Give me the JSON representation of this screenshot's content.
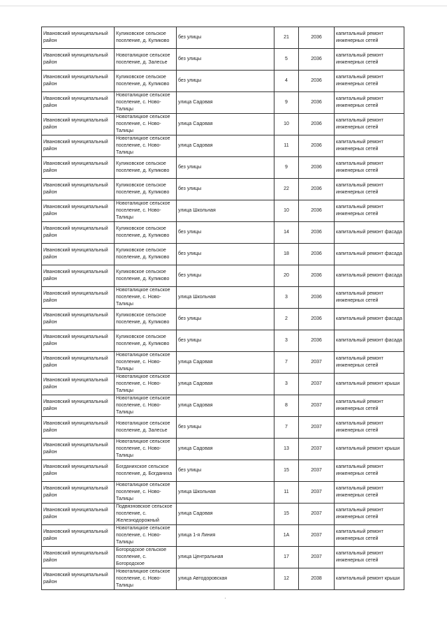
{
  "rows": [
    {
      "district": "Ивановский муниципальный район",
      "settlement": "Куликовское сельское поселение, д. Куликово",
      "street": "без улицы",
      "house": "21",
      "year": "2036",
      "work": "капитальный ремонт инженерных сетей"
    },
    {
      "district": "Ивановский муниципальный район",
      "settlement": "Новоталицкое сельское поселение, д. Залесье",
      "street": "без улицы",
      "house": "5",
      "year": "2036",
      "work": "капитальный ремонт инженерных сетей"
    },
    {
      "district": "Ивановский муниципальный район",
      "settlement": "Куликовское сельское поселение, д. Куликово",
      "street": "без улицы",
      "house": "4",
      "year": "2036",
      "work": "капитальный ремонт инженерных сетей"
    },
    {
      "district": "Ивановский муниципальный район",
      "settlement": "Новоталицкое сельское поселение, с. Ново-Талицы",
      "street": "улица Садовая",
      "house": "9",
      "year": "2036",
      "work": "капитальный ремонт инженерных сетей"
    },
    {
      "district": "Ивановский муниципальный район",
      "settlement": "Новоталицкое сельское поселение, с. Ново-Талицы",
      "street": "улица Садовая",
      "house": "10",
      "year": "2036",
      "work": "капитальный ремонт инженерных сетей"
    },
    {
      "district": "Ивановский муниципальный район",
      "settlement": "Новоталицкое сельское поселение, с. Ново-Талицы",
      "street": "улица Садовая",
      "house": "11",
      "year": "2036",
      "work": "капитальный ремонт инженерных сетей"
    },
    {
      "district": "Ивановский муниципальный район",
      "settlement": "Куликовское сельское поселение, д. Куликово",
      "street": "без улицы",
      "house": "9",
      "year": "2036",
      "work": "капитальный ремонт инженерных сетей"
    },
    {
      "district": "Ивановский муниципальный район",
      "settlement": "Куликовское сельское поселение, д. Куликово",
      "street": "без улицы",
      "house": "22",
      "year": "2036",
      "work": "капитальный ремонт инженерных сетей"
    },
    {
      "district": "Ивановский муниципальный район",
      "settlement": "Новоталицкое сельское поселение, с. Ново-Талицы",
      "street": "улица Школьная",
      "house": "10",
      "year": "2036",
      "work": "капитальный ремонт инженерных сетей"
    },
    {
      "district": "Ивановский муниципальный район",
      "settlement": "Куликовское сельское поселение, д. Куликово",
      "street": "без улицы",
      "house": "14",
      "year": "2036",
      "work": "капитальный ремонт фасада"
    },
    {
      "district": "Ивановский муниципальный район",
      "settlement": "Куликовское сельское поселение, д. Куликово",
      "street": "без улицы",
      "house": "18",
      "year": "2036",
      "work": "капитальный ремонт фасада"
    },
    {
      "district": "Ивановский муниципальный район",
      "settlement": "Куликовское сельское поселение, д. Куликово",
      "street": "без улицы",
      "house": "20",
      "year": "2036",
      "work": "капитальный ремонт фасада"
    },
    {
      "district": "Ивановский муниципальный район",
      "settlement": "Новоталицкое сельское поселение, с. Ново-Талицы",
      "street": "улица Школьная",
      "house": "3",
      "year": "2036",
      "work": "капитальный ремонт инженерных сетей"
    },
    {
      "district": "Ивановский муниципальный район",
      "settlement": "Куликовское сельское поселение, д. Куликово",
      "street": "без улицы",
      "house": "2",
      "year": "2036",
      "work": "капитальный ремонт фасада"
    },
    {
      "district": "Ивановский муниципальный район",
      "settlement": "Куликовское сельское поселение, д. Куликово",
      "street": "без улицы",
      "house": "3",
      "year": "2036",
      "work": "капитальный ремонт фасада"
    },
    {
      "district": "Ивановский муниципальный район",
      "settlement": "Новоталицкое сельское поселение, с. Ново-Талицы",
      "street": "улица Садовая",
      "house": "7",
      "year": "2037",
      "work": "капитальный ремонт инженерных сетей"
    },
    {
      "district": "Ивановский муниципальный район",
      "settlement": "Новоталицкое сельское поселение, с. Ново-Талицы",
      "street": "улица Садовая",
      "house": "3",
      "year": "2037",
      "work": "капитальный ремонт крыши"
    },
    {
      "district": "Ивановский муниципальный район",
      "settlement": "Новоталицкое сельское поселение, с. Ново-Талицы",
      "street": "улица Садовая",
      "house": "8",
      "year": "2037",
      "work": "капитальный ремонт инженерных сетей"
    },
    {
      "district": "Ивановский муниципальный район",
      "settlement": "Новоталицкое сельское поселение, д. Залесье",
      "street": "без улицы",
      "house": "7",
      "year": "2037",
      "work": "капитальный ремонт инженерных сетей"
    },
    {
      "district": "Ивановский муниципальный район",
      "settlement": "Новоталицкое сельское поселение, с. Ново-Талицы",
      "street": "улица Садовая",
      "house": "13",
      "year": "2037",
      "work": "капитальный ремонт крыши"
    },
    {
      "district": "Ивановский муниципальный район",
      "settlement": "Богданихское сельское поселение, д. Богданиха",
      "street": "без улицы",
      "house": "15",
      "year": "2037",
      "work": "капитальный ремонт инженерных сетей"
    },
    {
      "district": "Ивановский муниципальный район",
      "settlement": "Новоталицкое сельское поселение, с. Ново-Талицы",
      "street": "улица Школьная",
      "house": "11",
      "year": "2037",
      "work": "капитальный ремонт инженерных сетей"
    },
    {
      "district": "Ивановский муниципальный район",
      "settlement": "Подвязновское сельское поселение, с. Железнодорожный",
      "street": "улица Садовая",
      "house": "15",
      "year": "2037",
      "work": "капитальный ремонт инженерных сетей"
    },
    {
      "district": "Ивановский муниципальный район",
      "settlement": "Новоталицкое сельское поселение, с. Ново-Талицы",
      "street": "улица 1-я Линия",
      "house": "1А",
      "year": "2037",
      "work": "капитальный ремонт инженерных сетей"
    },
    {
      "district": "Ивановский муниципальный район",
      "settlement": "Богородское сельское поселение, с. Богородское",
      "street": "улица Центральная",
      "house": "17",
      "year": "2037",
      "work": "капитальный ремонт инженерных сетей"
    },
    {
      "district": "Ивановский муниципальный район",
      "settlement": "Новоталицкое сельское поселение, с. Ново-Талицы",
      "street": "улица Автодоровская",
      "house": "12",
      "year": "2038",
      "work": "капитальный ремонт крыши"
    }
  ]
}
